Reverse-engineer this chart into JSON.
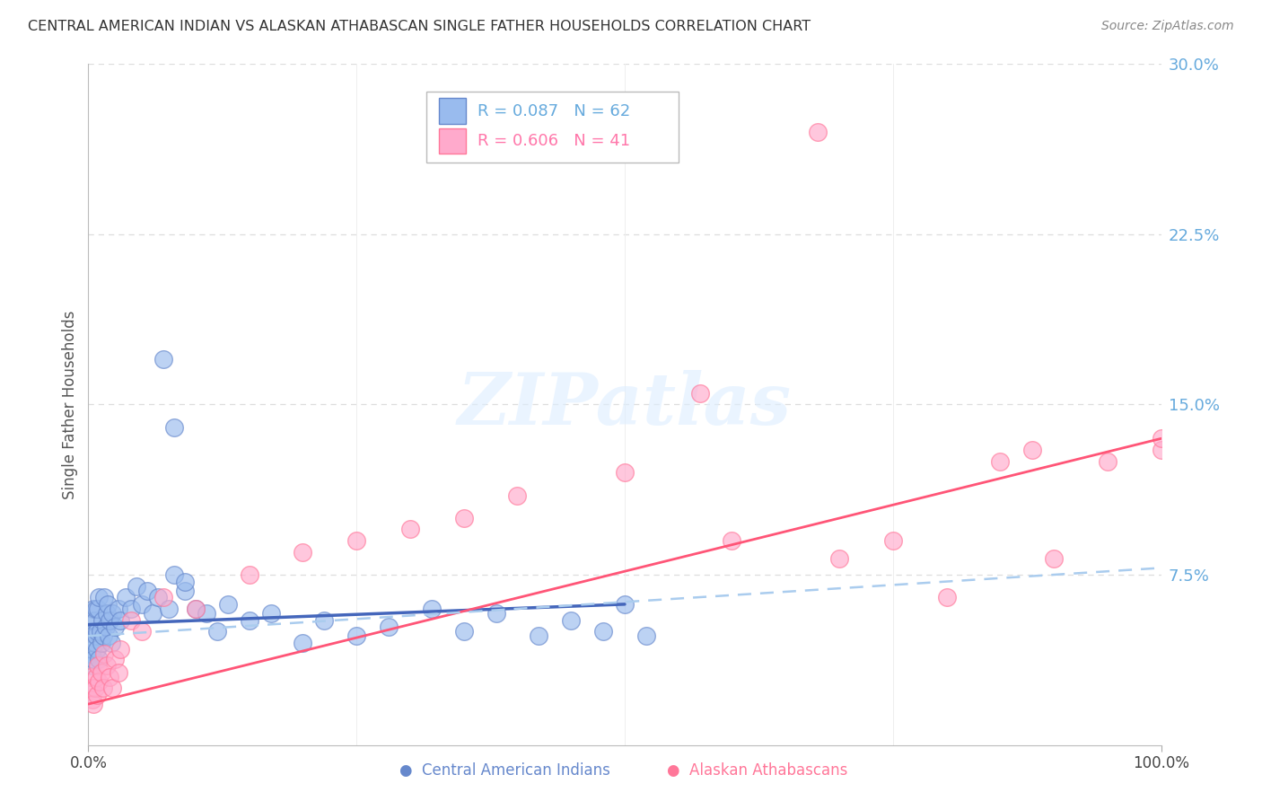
{
  "title": "CENTRAL AMERICAN INDIAN VS ALASKAN ATHABASCAN SINGLE FATHER HOUSEHOLDS CORRELATION CHART",
  "source": "Source: ZipAtlas.com",
  "ylabel": "Single Father Households",
  "ylim": [
    0.0,
    0.3
  ],
  "xlim": [
    0.0,
    1.0
  ],
  "legend_R1": "R = 0.087",
  "legend_N1": "N = 62",
  "legend_R2": "R = 0.606",
  "legend_N2": "N = 41",
  "color_blue": "#99BBEE",
  "color_pink": "#FFAACC",
  "color_blue_edge": "#6688CC",
  "color_pink_edge": "#FF7799",
  "color_label": "#66AADD",
  "color_pink_label": "#FF77AA",
  "watermark": "ZIPatlas",
  "bg_color": "#FFFFFF",
  "grid_color": "#DDDDDD",
  "blue_line_color": "#4466BB",
  "pink_line_color": "#FF5577",
  "dashed_color": "#AACCEE"
}
